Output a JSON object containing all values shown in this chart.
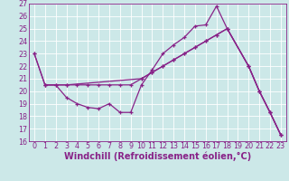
{
  "xlabel": "Windchill (Refroidissement éolien,°C)",
  "xlim_min": -0.5,
  "xlim_max": 23.5,
  "ylim_min": 16,
  "ylim_max": 27,
  "yticks": [
    16,
    17,
    18,
    19,
    20,
    21,
    22,
    23,
    24,
    25,
    26,
    27
  ],
  "xticks": [
    0,
    1,
    2,
    3,
    4,
    5,
    6,
    7,
    8,
    9,
    10,
    11,
    12,
    13,
    14,
    15,
    16,
    17,
    18,
    19,
    20,
    21,
    22,
    23
  ],
  "line1_x": [
    0,
    1,
    2,
    3,
    4,
    5,
    6,
    7,
    8,
    9,
    10,
    11,
    12,
    13,
    14,
    15,
    16,
    17,
    18,
    20,
    21,
    22,
    23
  ],
  "line1_y": [
    23.0,
    20.5,
    20.5,
    19.5,
    19.0,
    18.7,
    18.6,
    19.0,
    18.3,
    18.3,
    20.5,
    21.7,
    23.0,
    23.7,
    24.3,
    25.2,
    25.3,
    26.8,
    25.0,
    22.0,
    20.0,
    18.3,
    16.5
  ],
  "line2_x": [
    0,
    1,
    2,
    3,
    10,
    11,
    12,
    13,
    14,
    15,
    16,
    17,
    18,
    20,
    21,
    22,
    23
  ],
  "line2_y": [
    23.0,
    20.5,
    20.5,
    20.5,
    21.0,
    21.5,
    22.0,
    22.5,
    23.0,
    23.5,
    24.0,
    24.5,
    25.0,
    22.0,
    20.0,
    18.3,
    16.5
  ],
  "line3_x": [
    1,
    3,
    4,
    5,
    6,
    7,
    8,
    9,
    10,
    11,
    12,
    13,
    14,
    15,
    16,
    17,
    18,
    20,
    21,
    22,
    23
  ],
  "line3_y": [
    20.5,
    20.5,
    20.5,
    20.5,
    20.5,
    20.5,
    20.5,
    20.5,
    21.0,
    21.5,
    22.0,
    22.5,
    23.0,
    23.5,
    24.0,
    24.5,
    25.0,
    22.0,
    20.0,
    18.3,
    16.5
  ],
  "line_color": "#882288",
  "bg_color": "#cce8e8",
  "grid_color": "#ffffff",
  "tick_color": "#882288",
  "tick_fontsize": 5.8,
  "xlabel_fontsize": 7.0,
  "linewidth": 0.9,
  "markersize": 3.5
}
